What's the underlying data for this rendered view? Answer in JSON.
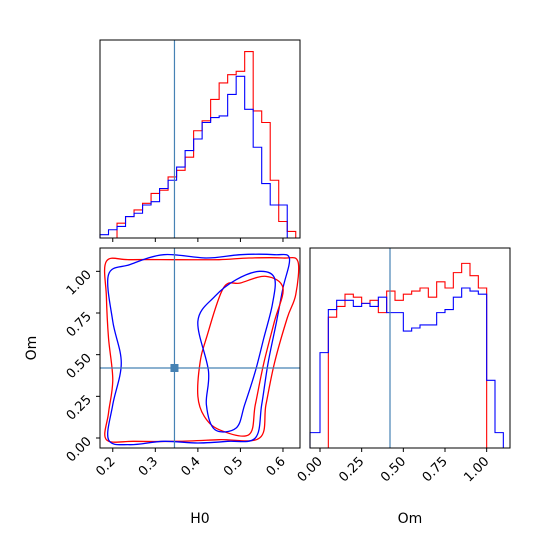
{
  "chart_data": {
    "type": "corner",
    "parameters": [
      "H0",
      "Om"
    ],
    "truth": {
      "H0": 0.345,
      "Om": 0.42
    },
    "colors": {
      "red": "#ff0000",
      "blue": "#0000ff",
      "truth": "#4682b4"
    },
    "grid": false,
    "panels": [
      {
        "kind": "histogram",
        "parameter": "H0",
        "xlim": [
          0.17,
          0.64
        ],
        "ymax": 0.24,
        "bin_edges": [
          0.17,
          0.19,
          0.21,
          0.23,
          0.25,
          0.27,
          0.29,
          0.31,
          0.33,
          0.35,
          0.37,
          0.39,
          0.41,
          0.43,
          0.45,
          0.47,
          0.49,
          0.51,
          0.53,
          0.55,
          0.57,
          0.59,
          0.61,
          0.63
        ],
        "series": [
          {
            "color": "red",
            "counts": [
              0.0,
              0.0,
              0.018,
              0.026,
              0.034,
              0.042,
              0.054,
              0.058,
              0.074,
              0.082,
              0.098,
              0.13,
              0.142,
              0.168,
              0.188,
              0.198,
              0.202,
              0.226,
              0.154,
              0.14,
              0.07,
              0.02,
              0.008
            ]
          },
          {
            "color": "blue",
            "counts": [
              0.004,
              0.01,
              0.014,
              0.026,
              0.03,
              0.04,
              0.044,
              0.06,
              0.07,
              0.086,
              0.106,
              0.12,
              0.14,
              0.146,
              0.148,
              0.174,
              0.196,
              0.156,
              0.11,
              0.066,
              0.04,
              0.04,
              0.0
            ]
          }
        ]
      },
      {
        "kind": "histogram",
        "parameter": "Om",
        "xlim": [
          -0.06,
          1.14
        ],
        "ymax": 1.3,
        "bin_edges": [
          -0.06,
          0.0,
          0.05,
          0.1,
          0.15,
          0.2,
          0.25,
          0.3,
          0.35,
          0.4,
          0.45,
          0.5,
          0.55,
          0.6,
          0.65,
          0.7,
          0.75,
          0.8,
          0.85,
          0.9,
          0.95,
          1.0,
          1.05,
          1.1
        ],
        "series": [
          {
            "color": "red",
            "counts": [
              0.0,
              0.0,
              0.85,
              0.92,
              1.0,
              0.98,
              0.94,
              0.96,
              0.88,
              1.02,
              0.96,
              1.0,
              1.02,
              1.04,
              0.98,
              1.08,
              1.04,
              1.14,
              1.2,
              1.12,
              1.04,
              0.0,
              0.0
            ]
          },
          {
            "color": "blue",
            "counts": [
              0.1,
              0.62,
              0.9,
              0.96,
              0.96,
              0.92,
              0.94,
              0.92,
              0.98,
              0.88,
              0.88,
              0.76,
              0.78,
              0.8,
              0.8,
              0.88,
              0.9,
              0.98,
              1.04,
              1.02,
              1.0,
              0.44,
              0.1
            ]
          }
        ]
      },
      {
        "kind": "contour",
        "x": "H0",
        "y": "Om",
        "xlim": [
          0.17,
          0.64
        ],
        "ylim": [
          -0.06,
          1.14
        ],
        "contours": [
          {
            "color": "red",
            "level": "outer",
            "points": [
              [
                0.185,
                1.06
              ],
              [
                0.24,
                1.07
              ],
              [
                0.35,
                1.07
              ],
              [
                0.45,
                1.07
              ],
              [
                0.52,
                1.08
              ],
              [
                0.6,
                1.08
              ],
              [
                0.635,
                1.06
              ],
              [
                0.63,
                0.86
              ],
              [
                0.61,
                0.72
              ],
              [
                0.58,
                0.45
              ],
              [
                0.56,
                0.2
              ],
              [
                0.545,
                0.0
              ],
              [
                0.45,
                -0.01
              ],
              [
                0.35,
                -0.02
              ],
              [
                0.25,
                -0.02
              ],
              [
                0.185,
                -0.01
              ],
              [
                0.19,
                0.15
              ],
              [
                0.2,
                0.35
              ],
              [
                0.19,
                0.6
              ],
              [
                0.185,
                0.85
              ]
            ]
          },
          {
            "color": "blue",
            "level": "outer",
            "points": [
              [
                0.19,
                0.98
              ],
              [
                0.24,
                1.04
              ],
              [
                0.32,
                1.1
              ],
              [
                0.42,
                1.08
              ],
              [
                0.5,
                1.1
              ],
              [
                0.58,
                1.1
              ],
              [
                0.615,
                1.08
              ],
              [
                0.6,
                0.9
              ],
              [
                0.585,
                0.7
              ],
              [
                0.565,
                0.45
              ],
              [
                0.55,
                0.2
              ],
              [
                0.535,
                0.0
              ],
              [
                0.47,
                -0.02
              ],
              [
                0.4,
                -0.03
              ],
              [
                0.32,
                -0.02
              ],
              [
                0.24,
                -0.04
              ],
              [
                0.19,
                -0.01
              ],
              [
                0.2,
                0.2
              ],
              [
                0.22,
                0.45
              ],
              [
                0.2,
                0.7
              ]
            ]
          },
          {
            "color": "red",
            "level": "inner",
            "points": [
              [
                0.42,
                0.6
              ],
              [
                0.46,
                0.9
              ],
              [
                0.5,
                0.93
              ],
              [
                0.56,
                0.97
              ],
              [
                0.6,
                0.9
              ],
              [
                0.58,
                0.7
              ],
              [
                0.555,
                0.45
              ],
              [
                0.535,
                0.2
              ],
              [
                0.52,
                0.02
              ],
              [
                0.45,
                0.05
              ],
              [
                0.415,
                0.13
              ],
              [
                0.4,
                0.25
              ],
              [
                0.405,
                0.45
              ]
            ]
          },
          {
            "color": "blue",
            "level": "inner",
            "points": [
              [
                0.4,
                0.7
              ],
              [
                0.44,
                0.85
              ],
              [
                0.49,
                0.95
              ],
              [
                0.545,
                1.0
              ],
              [
                0.58,
                0.96
              ],
              [
                0.575,
                0.8
              ],
              [
                0.555,
                0.6
              ],
              [
                0.535,
                0.4
              ],
              [
                0.51,
                0.2
              ],
              [
                0.49,
                0.06
              ],
              [
                0.44,
                0.05
              ],
              [
                0.42,
                0.2
              ],
              [
                0.425,
                0.4
              ]
            ]
          }
        ]
      }
    ],
    "axes": {
      "H0": {
        "label": "H0",
        "ticks": [
          0.2,
          0.3,
          0.4,
          0.5,
          0.6
        ],
        "tick_labels": [
          "0.2",
          "0.3",
          "0.4",
          "0.5",
          "0.6"
        ]
      },
      "Om": {
        "label": "Om",
        "ticks": [
          0.0,
          0.25,
          0.5,
          0.75,
          1.0
        ],
        "tick_labels": [
          "0.00",
          "0.25",
          "0.50",
          "0.75",
          "1.00"
        ]
      }
    }
  }
}
